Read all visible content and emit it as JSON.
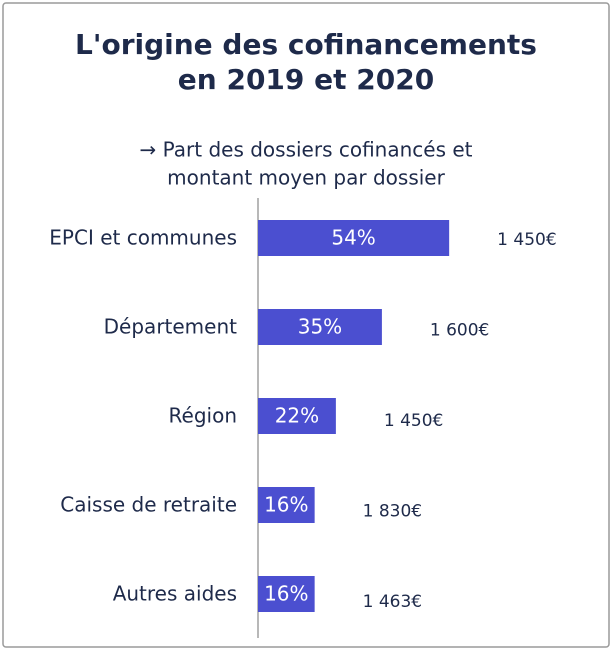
{
  "chart_data": {
    "type": "bar",
    "orientation": "horizontal",
    "title": [
      "L'origine des cofinancements",
      "en 2019 et 2020"
    ],
    "subtitle": [
      "→ Part des dossiers cofinancés et",
      "montant moyen par dossier"
    ],
    "categories": [
      "EPCI et communes",
      "Département",
      "Région",
      "Caisse de retraite",
      "Autres aides"
    ],
    "values": [
      54,
      35,
      22,
      16,
      16
    ],
    "value_labels": [
      "54%",
      "35%",
      "22%",
      "16%",
      "16%"
    ],
    "annotations": [
      "1 450€",
      "1 600€",
      "1 450€",
      "1 830€",
      "1 463€"
    ],
    "color": "#4b4fd0"
  }
}
